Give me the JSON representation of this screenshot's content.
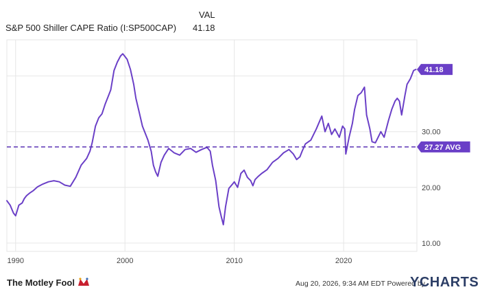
{
  "header": {
    "series_name": "S&P 500 Shiller CAPE Ratio (I:SP500CAP)",
    "value_header": "VAL",
    "value": "41.18"
  },
  "footer": {
    "timestamp": "Aug 20, 2026, 9:34 AM EDT Powered by",
    "brand_ycharts": "YCHARTS",
    "brand_motley": "The Motley Fool"
  },
  "colors": {
    "line": "#6a3fc7",
    "avg_line": "#5b33b5",
    "label_bg": "#6a3fc7",
    "grid": "#e6e6e6"
  },
  "chart_data": {
    "type": "line",
    "title": "S&P 500 Shiller CAPE Ratio (I:SP500CAP)",
    "xlim": [
      1989.2,
      2026.7
    ],
    "ylim": [
      8.5,
      46.5
    ],
    "x_ticks": [
      {
        "value": 1990,
        "label": "1990"
      },
      {
        "value": 2000,
        "label": "2000"
      },
      {
        "value": 2010,
        "label": "2010"
      },
      {
        "value": 2020,
        "label": "2020"
      }
    ],
    "y_ticks": [
      {
        "value": 10,
        "label": "10.00"
      },
      {
        "value": 20,
        "label": "20.00"
      },
      {
        "value": 30,
        "label": "30.00"
      },
      {
        "value": 40,
        "label": ""
      }
    ],
    "grid": true,
    "last_value": {
      "value": 41.18,
      "label": "41.18"
    },
    "average": {
      "value": 27.27,
      "label": "27.27 AVG"
    },
    "series": [
      {
        "x": [
          1989.2,
          1989.5,
          1989.8,
          1990.0,
          1990.3,
          1990.6,
          1990.8,
          1991.0,
          1991.3,
          1991.6,
          1992.0,
          1992.5,
          1993.0,
          1993.5,
          1994.0,
          1994.5,
          1995.0,
          1995.5,
          1996.0,
          1996.5,
          1996.8,
          1997.0,
          1997.3,
          1997.6,
          1997.9,
          1998.2,
          1998.5,
          1998.7,
          1999.0,
          1999.3,
          1999.6,
          1999.8,
          2000.0,
          2000.2,
          2000.5,
          2000.8,
          2001.0,
          2001.3,
          2001.6,
          2001.9,
          2002.1,
          2002.4,
          2002.6,
          2002.8,
          2003.0,
          2003.3,
          2003.6,
          2004.0,
          2004.5,
          2005.0,
          2005.5,
          2006.0,
          2006.5,
          2007.0,
          2007.5,
          2007.8,
          2008.0,
          2008.3,
          2008.6,
          2008.8,
          2009.0,
          2009.2,
          2009.5,
          2009.8,
          2010.0,
          2010.3,
          2010.6,
          2010.9,
          2011.2,
          2011.5,
          2011.7,
          2011.9,
          2012.2,
          2012.5,
          2013.0,
          2013.5,
          2014.0,
          2014.5,
          2015.0,
          2015.4,
          2015.7,
          2016.0,
          2016.2,
          2016.5,
          2017.0,
          2017.5,
          2018.0,
          2018.3,
          2018.6,
          2018.9,
          2019.2,
          2019.6,
          2019.9,
          2020.1,
          2020.2,
          2020.5,
          2020.8,
          2021.0,
          2021.3,
          2021.6,
          2021.9,
          2022.1,
          2022.4,
          2022.6,
          2022.9,
          2023.1,
          2023.4,
          2023.7,
          2023.9,
          2024.1,
          2024.4,
          2024.7,
          2024.9,
          2025.1,
          2025.3,
          2025.6,
          2025.8,
          2026.1,
          2026.4,
          2026.6
        ],
        "y": [
          17.6,
          16.8,
          15.4,
          14.9,
          16.8,
          17.2,
          18.0,
          18.5,
          19.0,
          19.4,
          20.1,
          20.6,
          21.0,
          21.2,
          21.0,
          20.4,
          20.2,
          21.8,
          24.0,
          25.2,
          26.5,
          28.0,
          31.0,
          32.5,
          33.2,
          35.0,
          36.5,
          37.5,
          41.0,
          42.5,
          43.6,
          44.0,
          43.5,
          43.0,
          41.2,
          38.5,
          36.0,
          33.5,
          31.0,
          29.5,
          28.5,
          26.5,
          24.0,
          22.8,
          22.0,
          24.5,
          25.8,
          27.0,
          26.2,
          25.8,
          26.8,
          27.0,
          26.3,
          26.8,
          27.2,
          26.5,
          24.0,
          21.2,
          16.5,
          14.8,
          13.3,
          16.5,
          19.8,
          20.5,
          21.0,
          20.0,
          22.5,
          23.1,
          21.8,
          21.2,
          20.3,
          21.4,
          22.0,
          22.5,
          23.2,
          24.5,
          25.2,
          26.2,
          26.8,
          26.0,
          25.0,
          25.5,
          26.5,
          27.8,
          28.5,
          30.5,
          32.8,
          30.0,
          31.5,
          29.5,
          30.5,
          29.0,
          31.0,
          30.5,
          26.0,
          29.0,
          31.5,
          34.0,
          36.5,
          37.0,
          38.0,
          33.0,
          30.5,
          28.2,
          28.0,
          28.8,
          30.0,
          29.0,
          30.5,
          32.0,
          34.0,
          35.5,
          36.0,
          35.5,
          33.0,
          36.5,
          38.5,
          39.5,
          41.0,
          41.18
        ]
      }
    ]
  }
}
